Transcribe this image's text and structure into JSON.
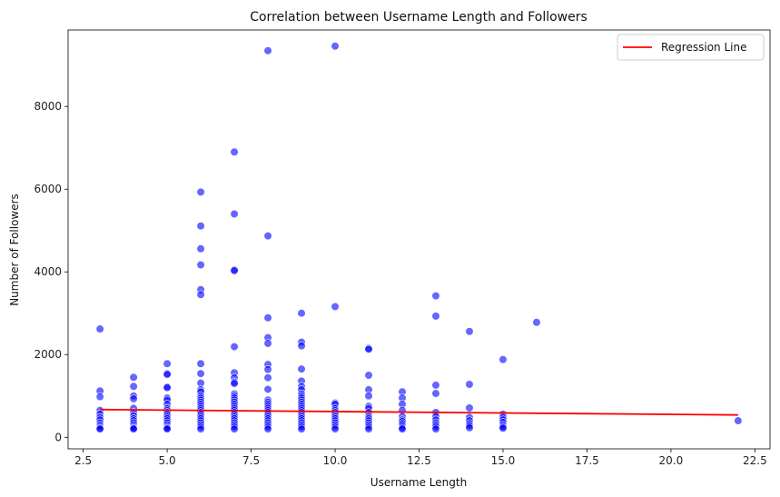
{
  "chart_data": {
    "type": "scatter",
    "title": "Correlation between Username Length and Followers",
    "xlabel": "Username Length",
    "ylabel": "Number of Followers",
    "xlim": [
      2.05,
      22.95
    ],
    "ylim": [
      -280,
      9850
    ],
    "xticks": [
      2.5,
      5.0,
      7.5,
      10.0,
      12.5,
      15.0,
      17.5,
      20.0,
      22.5
    ],
    "xtick_labels": [
      "2.5",
      "5.0",
      "7.5",
      "10.0",
      "12.5",
      "15.0",
      "17.5",
      "20.0",
      "22.5"
    ],
    "yticks": [
      0,
      2000,
      4000,
      6000,
      8000
    ],
    "ytick_labels": [
      "0",
      "2000",
      "4000",
      "6000",
      "8000"
    ],
    "grid": false,
    "legend_position": "top-right",
    "point_color": "#0000ff",
    "line_color": "#ff0000",
    "series": [
      {
        "kind": "scatter",
        "points": [
          [
            3,
            2620
          ],
          [
            3,
            1120
          ],
          [
            3,
            980
          ],
          [
            3,
            650
          ],
          [
            3,
            560
          ],
          [
            3,
            480
          ],
          [
            3,
            420
          ],
          [
            3,
            350
          ],
          [
            3,
            300
          ],
          [
            3,
            260
          ],
          [
            3,
            220
          ],
          [
            3,
            200
          ],
          [
            4,
            1450
          ],
          [
            4,
            1230
          ],
          [
            4,
            1000
          ],
          [
            4,
            930
          ],
          [
            4,
            700
          ],
          [
            4,
            600
          ],
          [
            4,
            520
          ],
          [
            4,
            450
          ],
          [
            4,
            400
          ],
          [
            4,
            350
          ],
          [
            4,
            300
          ],
          [
            4,
            250
          ],
          [
            4,
            220
          ],
          [
            4,
            200
          ],
          [
            5,
            1780
          ],
          [
            5,
            1540
          ],
          [
            5,
            1520
          ],
          [
            5,
            1220
          ],
          [
            5,
            1200
          ],
          [
            5,
            950
          ],
          [
            5,
            900
          ],
          [
            5,
            800
          ],
          [
            5,
            700
          ],
          [
            5,
            650
          ],
          [
            5,
            600
          ],
          [
            5,
            550
          ],
          [
            5,
            500
          ],
          [
            5,
            450
          ],
          [
            5,
            400
          ],
          [
            5,
            350
          ],
          [
            5,
            300
          ],
          [
            5,
            250
          ],
          [
            5,
            220
          ],
          [
            5,
            200
          ],
          [
            6,
            5930
          ],
          [
            6,
            5110
          ],
          [
            6,
            4560
          ],
          [
            6,
            4170
          ],
          [
            6,
            3570
          ],
          [
            6,
            3450
          ],
          [
            6,
            1780
          ],
          [
            6,
            1540
          ],
          [
            6,
            1310
          ],
          [
            6,
            1150
          ],
          [
            6,
            1100
          ],
          [
            6,
            1000
          ],
          [
            6,
            950
          ],
          [
            6,
            900
          ],
          [
            6,
            850
          ],
          [
            6,
            800
          ],
          [
            6,
            750
          ],
          [
            6,
            700
          ],
          [
            6,
            650
          ],
          [
            6,
            600
          ],
          [
            6,
            550
          ],
          [
            6,
            500
          ],
          [
            6,
            450
          ],
          [
            6,
            400
          ],
          [
            6,
            350
          ],
          [
            6,
            300
          ],
          [
            6,
            250
          ],
          [
            6,
            200
          ],
          [
            7,
            6900
          ],
          [
            7,
            5400
          ],
          [
            7,
            4050
          ],
          [
            7,
            4030
          ],
          [
            7,
            2190
          ],
          [
            7,
            1560
          ],
          [
            7,
            1440
          ],
          [
            7,
            1330
          ],
          [
            7,
            1300
          ],
          [
            7,
            1050
          ],
          [
            7,
            1000
          ],
          [
            7,
            950
          ],
          [
            7,
            900
          ],
          [
            7,
            850
          ],
          [
            7,
            800
          ],
          [
            7,
            750
          ],
          [
            7,
            700
          ],
          [
            7,
            650
          ],
          [
            7,
            600
          ],
          [
            7,
            550
          ],
          [
            7,
            500
          ],
          [
            7,
            450
          ],
          [
            7,
            400
          ],
          [
            7,
            350
          ],
          [
            7,
            300
          ],
          [
            7,
            250
          ],
          [
            7,
            200
          ],
          [
            8,
            9350
          ],
          [
            8,
            4870
          ],
          [
            8,
            2890
          ],
          [
            8,
            2410
          ],
          [
            8,
            2270
          ],
          [
            8,
            1760
          ],
          [
            8,
            1640
          ],
          [
            8,
            1440
          ],
          [
            8,
            1160
          ],
          [
            8,
            900
          ],
          [
            8,
            850
          ],
          [
            8,
            800
          ],
          [
            8,
            750
          ],
          [
            8,
            700
          ],
          [
            8,
            650
          ],
          [
            8,
            600
          ],
          [
            8,
            550
          ],
          [
            8,
            500
          ],
          [
            8,
            450
          ],
          [
            8,
            400
          ],
          [
            8,
            350
          ],
          [
            8,
            300
          ],
          [
            8,
            250
          ],
          [
            8,
            200
          ],
          [
            9,
            3000
          ],
          [
            9,
            2300
          ],
          [
            9,
            2210
          ],
          [
            9,
            1650
          ],
          [
            9,
            1360
          ],
          [
            9,
            1230
          ],
          [
            9,
            1150
          ],
          [
            9,
            1050
          ],
          [
            9,
            1000
          ],
          [
            9,
            950
          ],
          [
            9,
            900
          ],
          [
            9,
            850
          ],
          [
            9,
            800
          ],
          [
            9,
            750
          ],
          [
            9,
            700
          ],
          [
            9,
            650
          ],
          [
            9,
            600
          ],
          [
            9,
            550
          ],
          [
            9,
            500
          ],
          [
            9,
            450
          ],
          [
            9,
            400
          ],
          [
            9,
            350
          ],
          [
            9,
            300
          ],
          [
            9,
            250
          ],
          [
            9,
            200
          ],
          [
            10,
            9460
          ],
          [
            10,
            3160
          ],
          [
            10,
            830
          ],
          [
            10,
            800
          ],
          [
            10,
            700
          ],
          [
            10,
            650
          ],
          [
            10,
            600
          ],
          [
            10,
            550
          ],
          [
            10,
            500
          ],
          [
            10,
            450
          ],
          [
            10,
            400
          ],
          [
            10,
            350
          ],
          [
            10,
            300
          ],
          [
            10,
            250
          ],
          [
            10,
            200
          ],
          [
            11,
            2150
          ],
          [
            11,
            2130
          ],
          [
            11,
            1500
          ],
          [
            11,
            1150
          ],
          [
            11,
            1000
          ],
          [
            11,
            750
          ],
          [
            11,
            700
          ],
          [
            11,
            600
          ],
          [
            11,
            500
          ],
          [
            11,
            450
          ],
          [
            11,
            400
          ],
          [
            11,
            350
          ],
          [
            11,
            300
          ],
          [
            11,
            250
          ],
          [
            11,
            200
          ],
          [
            12,
            1100
          ],
          [
            12,
            950
          ],
          [
            12,
            800
          ],
          [
            12,
            650
          ],
          [
            12,
            500
          ],
          [
            12,
            420
          ],
          [
            12,
            380
          ],
          [
            12,
            330
          ],
          [
            12,
            280
          ],
          [
            12,
            230
          ],
          [
            12,
            200
          ],
          [
            13,
            3420
          ],
          [
            13,
            2930
          ],
          [
            13,
            1260
          ],
          [
            13,
            1060
          ],
          [
            13,
            600
          ],
          [
            13,
            500
          ],
          [
            13,
            420
          ],
          [
            13,
            350
          ],
          [
            13,
            300
          ],
          [
            13,
            250
          ],
          [
            13,
            200
          ],
          [
            14,
            2560
          ],
          [
            14,
            1280
          ],
          [
            14,
            710
          ],
          [
            14,
            480
          ],
          [
            14,
            400
          ],
          [
            14,
            330
          ],
          [
            14,
            280
          ],
          [
            14,
            230
          ],
          [
            15,
            1880
          ],
          [
            15,
            560
          ],
          [
            15,
            480
          ],
          [
            15,
            420
          ],
          [
            15,
            360
          ],
          [
            15,
            300
          ],
          [
            15,
            250
          ],
          [
            15,
            220
          ],
          [
            16,
            2780
          ],
          [
            22,
            400
          ]
        ]
      },
      {
        "kind": "line",
        "name": "Regression Line",
        "x": [
          3,
          22
        ],
        "y": [
          670,
          540
        ]
      }
    ]
  }
}
